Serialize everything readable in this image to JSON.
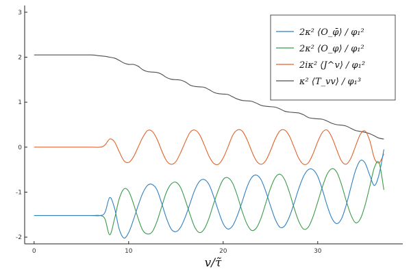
{
  "chart_data": {
    "type": "line",
    "title": "",
    "xlabel": "v/τ̃",
    "ylabel": "",
    "xlim": [
      -1,
      39
    ],
    "ylim": [
      -2.15,
      3.15
    ],
    "xticks": [
      0,
      10,
      20,
      30
    ],
    "xtick_labels": [
      "0",
      "10",
      "20",
      "30"
    ],
    "yticks": [
      -2,
      -1,
      0,
      1,
      2,
      3
    ],
    "ytick_labels": [
      "-2",
      "-1",
      "0",
      "1",
      "2",
      "3"
    ],
    "grid": false,
    "legend_position": "top-right",
    "x": [
      0,
      2,
      4,
      6,
      7,
      7.5,
      8,
      8.5,
      9,
      9.5,
      10,
      10.5,
      11,
      11.5,
      12,
      12.5,
      13,
      13.5,
      14,
      14.5,
      15,
      15.5,
      16,
      16.5,
      17,
      17.5,
      18,
      18.5,
      19,
      19.5,
      20,
      20.5,
      21,
      21.5,
      22,
      22.5,
      23,
      23.5,
      24,
      24.5,
      25,
      25.5,
      26,
      26.5,
      27,
      27.5,
      28,
      28.5,
      29,
      29.5,
      30,
      30.5,
      31,
      31.5,
      32,
      32.5,
      33,
      33.5,
      34,
      34.5,
      35,
      35.5,
      36,
      36.5,
      37
    ],
    "series": [
      {
        "name": "2κ² ⟨O_φ̄⟩ / φ₁²",
        "color": "#2f7fc1",
        "values": [
          -1.52,
          -1.52,
          -1.52,
          -1.52,
          -1.52,
          -1.45,
          -1.12,
          -1.35,
          -1.82,
          -2.02,
          -1.9,
          -1.62,
          -1.3,
          -1.02,
          -0.85,
          -0.83,
          -0.95,
          -1.25,
          -1.58,
          -1.82,
          -1.88,
          -1.78,
          -1.55,
          -1.25,
          -0.95,
          -0.76,
          -0.72,
          -0.83,
          -1.1,
          -1.42,
          -1.7,
          -1.82,
          -1.75,
          -1.52,
          -1.22,
          -0.9,
          -0.68,
          -0.62,
          -0.72,
          -0.98,
          -1.3,
          -1.6,
          -1.78,
          -1.75,
          -1.55,
          -1.25,
          -0.92,
          -0.65,
          -0.5,
          -0.5,
          -0.65,
          -0.95,
          -1.3,
          -1.58,
          -1.7,
          -1.6,
          -1.3,
          -0.9,
          -0.52,
          -0.3,
          -0.35,
          -0.62,
          -0.85,
          -0.6,
          -0.05
        ]
      },
      {
        "name": "2κ² ⟨O_φ⟩ / φ₁²",
        "color": "#3a9a4a",
        "values": [
          -1.52,
          -1.52,
          -1.52,
          -1.52,
          -1.52,
          -1.6,
          -1.95,
          -1.6,
          -1.15,
          -0.93,
          -0.98,
          -1.25,
          -1.58,
          -1.85,
          -1.93,
          -1.88,
          -1.65,
          -1.32,
          -1.0,
          -0.82,
          -0.78,
          -0.9,
          -1.18,
          -1.5,
          -1.78,
          -1.9,
          -1.82,
          -1.58,
          -1.25,
          -0.95,
          -0.72,
          -0.68,
          -0.8,
          -1.08,
          -1.42,
          -1.7,
          -1.85,
          -1.8,
          -1.58,
          -1.25,
          -0.92,
          -0.68,
          -0.6,
          -0.72,
          -1.0,
          -1.35,
          -1.65,
          -1.82,
          -1.78,
          -1.55,
          -1.22,
          -0.88,
          -0.6,
          -0.48,
          -0.55,
          -0.82,
          -1.18,
          -1.5,
          -1.68,
          -1.6,
          -1.3,
          -0.88,
          -0.45,
          -0.35,
          -0.95
        ]
      },
      {
        "name": "2iκ² ⟨J^v⟩ / φ₁²",
        "color": "#e0622a",
        "values": [
          0,
          0,
          0,
          0,
          0,
          0.05,
          0.18,
          0.12,
          -0.1,
          -0.3,
          -0.34,
          -0.22,
          0.0,
          0.22,
          0.37,
          0.35,
          0.18,
          -0.08,
          -0.3,
          -0.38,
          -0.32,
          -0.12,
          0.12,
          0.33,
          0.38,
          0.28,
          0.05,
          -0.2,
          -0.36,
          -0.38,
          -0.24,
          0.0,
          0.26,
          0.38,
          0.36,
          0.18,
          -0.08,
          -0.3,
          -0.38,
          -0.3,
          -0.08,
          0.18,
          0.36,
          0.38,
          0.25,
          0.0,
          -0.25,
          -0.38,
          -0.35,
          -0.15,
          0.12,
          0.33,
          0.38,
          0.22,
          -0.05,
          -0.3,
          -0.38,
          -0.25,
          0.02,
          0.28,
          0.36,
          0.15,
          -0.25,
          -0.35,
          -0.15
        ]
      },
      {
        "name": "κ² ⟨T_vv⟩ / φ₁³",
        "color": "#4d4d4d",
        "values": [
          2.05,
          2.05,
          2.05,
          2.05,
          2.03,
          2.02,
          2.0,
          1.98,
          1.93,
          1.87,
          1.84,
          1.84,
          1.8,
          1.72,
          1.68,
          1.67,
          1.66,
          1.62,
          1.55,
          1.51,
          1.5,
          1.49,
          1.45,
          1.38,
          1.35,
          1.34,
          1.33,
          1.28,
          1.22,
          1.19,
          1.18,
          1.17,
          1.12,
          1.07,
          1.04,
          1.03,
          1.02,
          0.98,
          0.93,
          0.91,
          0.9,
          0.89,
          0.85,
          0.8,
          0.78,
          0.77,
          0.76,
          0.72,
          0.66,
          0.64,
          0.63,
          0.62,
          0.58,
          0.53,
          0.5,
          0.49,
          0.47,
          0.42,
          0.37,
          0.35,
          0.33,
          0.3,
          0.25,
          0.2,
          0.18
        ]
      }
    ]
  }
}
